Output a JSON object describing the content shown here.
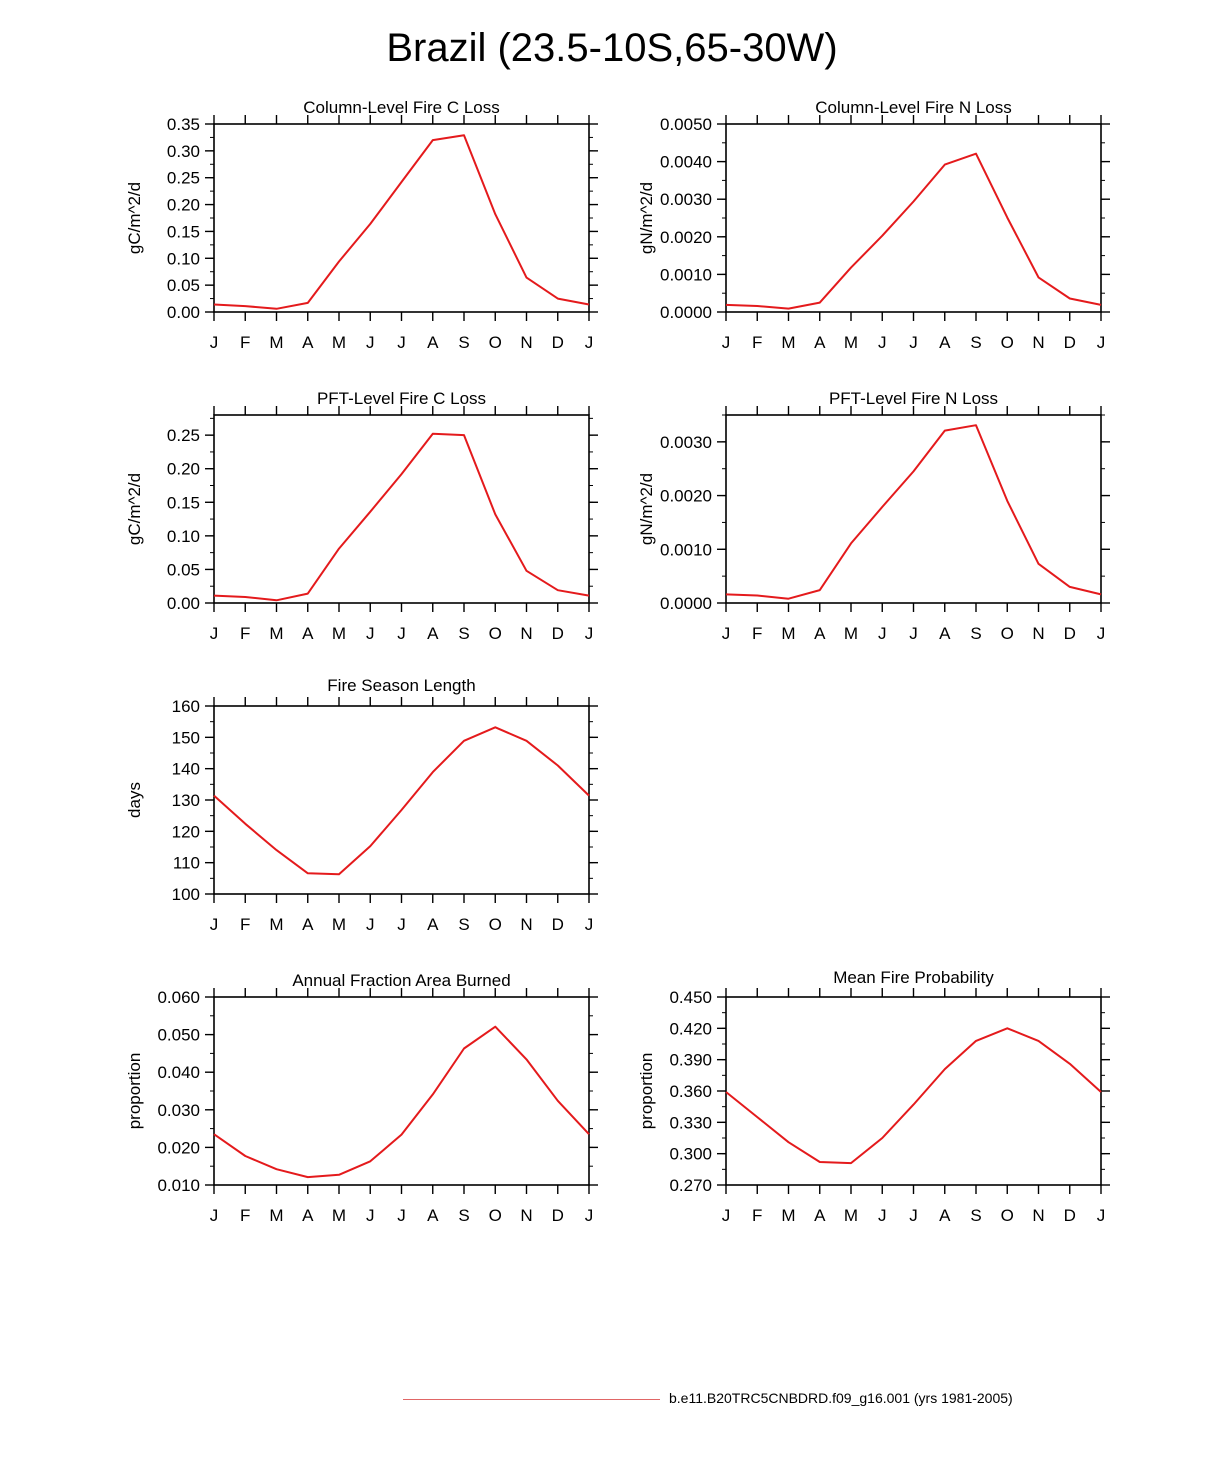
{
  "title": "Brazil (23.5-10S,65-30W)",
  "legend": {
    "label": "b.e11.B20TRC5CNBDRD.f09_g16.001 (yrs 1981-2005)",
    "color": "#e06666"
  },
  "line_color": "#e41a1c",
  "chart_data": [
    {
      "type": "line",
      "title": "Column-Level Fire C Loss",
      "ylabel": "gC/m^2/d",
      "categories": [
        "J",
        "F",
        "M",
        "A",
        "M",
        "J",
        "J",
        "A",
        "S",
        "O",
        "N",
        "D",
        "J"
      ],
      "values": [
        0.014,
        0.011,
        0.006,
        0.017,
        0.094,
        0.164,
        0.242,
        0.32,
        0.329,
        0.182,
        0.064,
        0.025,
        0.014
      ],
      "ylim": [
        0,
        0.35
      ],
      "yticks": [
        0,
        0.05,
        0.1,
        0.15,
        0.2,
        0.25,
        0.3,
        0.35
      ],
      "ytick_labels": [
        "0.00",
        "0.05",
        "0.10",
        "0.15",
        "0.20",
        "0.25",
        "0.30",
        "0.35"
      ],
      "yminor": 0.025
    },
    {
      "type": "line",
      "title": "Column-Level Fire N Loss",
      "ylabel": "gN/m^2/d",
      "categories": [
        "J",
        "F",
        "M",
        "A",
        "M",
        "J",
        "J",
        "A",
        "S",
        "O",
        "N",
        "D",
        "J"
      ],
      "values": [
        0.00019,
        0.00016,
        9e-05,
        0.00025,
        0.00118,
        0.00203,
        0.00294,
        0.00392,
        0.00421,
        0.00251,
        0.00092,
        0.00036,
        0.00019
      ],
      "ylim": [
        0,
        0.005
      ],
      "yticks": [
        0,
        0.001,
        0.002,
        0.003,
        0.004,
        0.005
      ],
      "ytick_labels": [
        "0.0000",
        "0.0010",
        "0.0020",
        "0.0030",
        "0.0040",
        "0.0050"
      ],
      "yminor": 0.0005
    },
    {
      "type": "line",
      "title": "PFT-Level Fire C Loss",
      "ylabel": "gC/m^2/d",
      "categories": [
        "J",
        "F",
        "M",
        "A",
        "M",
        "J",
        "J",
        "A",
        "S",
        "O",
        "N",
        "D",
        "J"
      ],
      "values": [
        0.011,
        0.009,
        0.004,
        0.014,
        0.081,
        0.136,
        0.192,
        0.252,
        0.25,
        0.132,
        0.048,
        0.019,
        0.011
      ],
      "ylim": [
        0,
        0.28
      ],
      "yticks": [
        0,
        0.05,
        0.1,
        0.15,
        0.2,
        0.25
      ],
      "ytick_labels": [
        "0.00",
        "0.05",
        "0.10",
        "0.15",
        "0.20",
        "0.25"
      ],
      "yminor": 0.025
    },
    {
      "type": "line",
      "title": "PFT-Level Fire N Loss",
      "ylabel": "gN/m^2/d",
      "categories": [
        "J",
        "F",
        "M",
        "A",
        "M",
        "J",
        "J",
        "A",
        "S",
        "O",
        "N",
        "D",
        "J"
      ],
      "values": [
        0.00016,
        0.00014,
        8e-05,
        0.00024,
        0.00111,
        0.00179,
        0.00245,
        0.00321,
        0.00331,
        0.0019,
        0.00073,
        0.0003,
        0.00016
      ],
      "ylim": [
        0,
        0.0035
      ],
      "yticks": [
        0,
        0.001,
        0.002,
        0.003
      ],
      "ytick_labels": [
        "0.0000",
        "0.0010",
        "0.0020",
        "0.0030"
      ],
      "yminor": 0.0005
    },
    {
      "type": "line",
      "title": "Fire Season Length",
      "ylabel": "days",
      "categories": [
        "J",
        "F",
        "M",
        "A",
        "M",
        "J",
        "J",
        "A",
        "S",
        "O",
        "N",
        "D",
        "J"
      ],
      "values": [
        131.4,
        122.4,
        114.0,
        106.6,
        106.3,
        115.3,
        126.8,
        138.9,
        148.9,
        153.2,
        148.9,
        141.0,
        131.4
      ],
      "ylim": [
        100,
        160
      ],
      "yticks": [
        100,
        110,
        120,
        130,
        140,
        150,
        160
      ],
      "ytick_labels": [
        "100",
        "110",
        "120",
        "130",
        "140",
        "150",
        "160"
      ],
      "yminor": 5
    },
    {
      "type": "line",
      "title": "Annual Fraction Area Burned",
      "ylabel": "proportion",
      "categories": [
        "J",
        "F",
        "M",
        "A",
        "M",
        "J",
        "J",
        "A",
        "S",
        "O",
        "N",
        "D",
        "J"
      ],
      "values": [
        0.0235,
        0.0177,
        0.0142,
        0.0121,
        0.0127,
        0.0163,
        0.0234,
        0.0341,
        0.0463,
        0.0521,
        0.0434,
        0.0324,
        0.0235
      ],
      "ylim": [
        0.01,
        0.06
      ],
      "yticks": [
        0.01,
        0.02,
        0.03,
        0.04,
        0.05,
        0.06
      ],
      "ytick_labels": [
        "0.010",
        "0.020",
        "0.030",
        "0.040",
        "0.050",
        "0.060"
      ],
      "yminor": 0.005
    },
    {
      "type": "line",
      "title": "Mean Fire Probability",
      "ylabel": "proportion",
      "categories": [
        "J",
        "F",
        "M",
        "A",
        "M",
        "J",
        "J",
        "A",
        "S",
        "O",
        "N",
        "D",
        "J"
      ],
      "values": [
        0.359,
        0.335,
        0.311,
        0.292,
        0.291,
        0.315,
        0.347,
        0.381,
        0.408,
        0.42,
        0.408,
        0.386,
        0.359
      ],
      "ylim": [
        0.27,
        0.45
      ],
      "yticks": [
        0.27,
        0.3,
        0.33,
        0.36,
        0.39,
        0.42,
        0.45
      ],
      "ytick_labels": [
        "0.270",
        "0.300",
        "0.330",
        "0.360",
        "0.390",
        "0.420",
        "0.450"
      ],
      "yminor": 0.015
    }
  ]
}
